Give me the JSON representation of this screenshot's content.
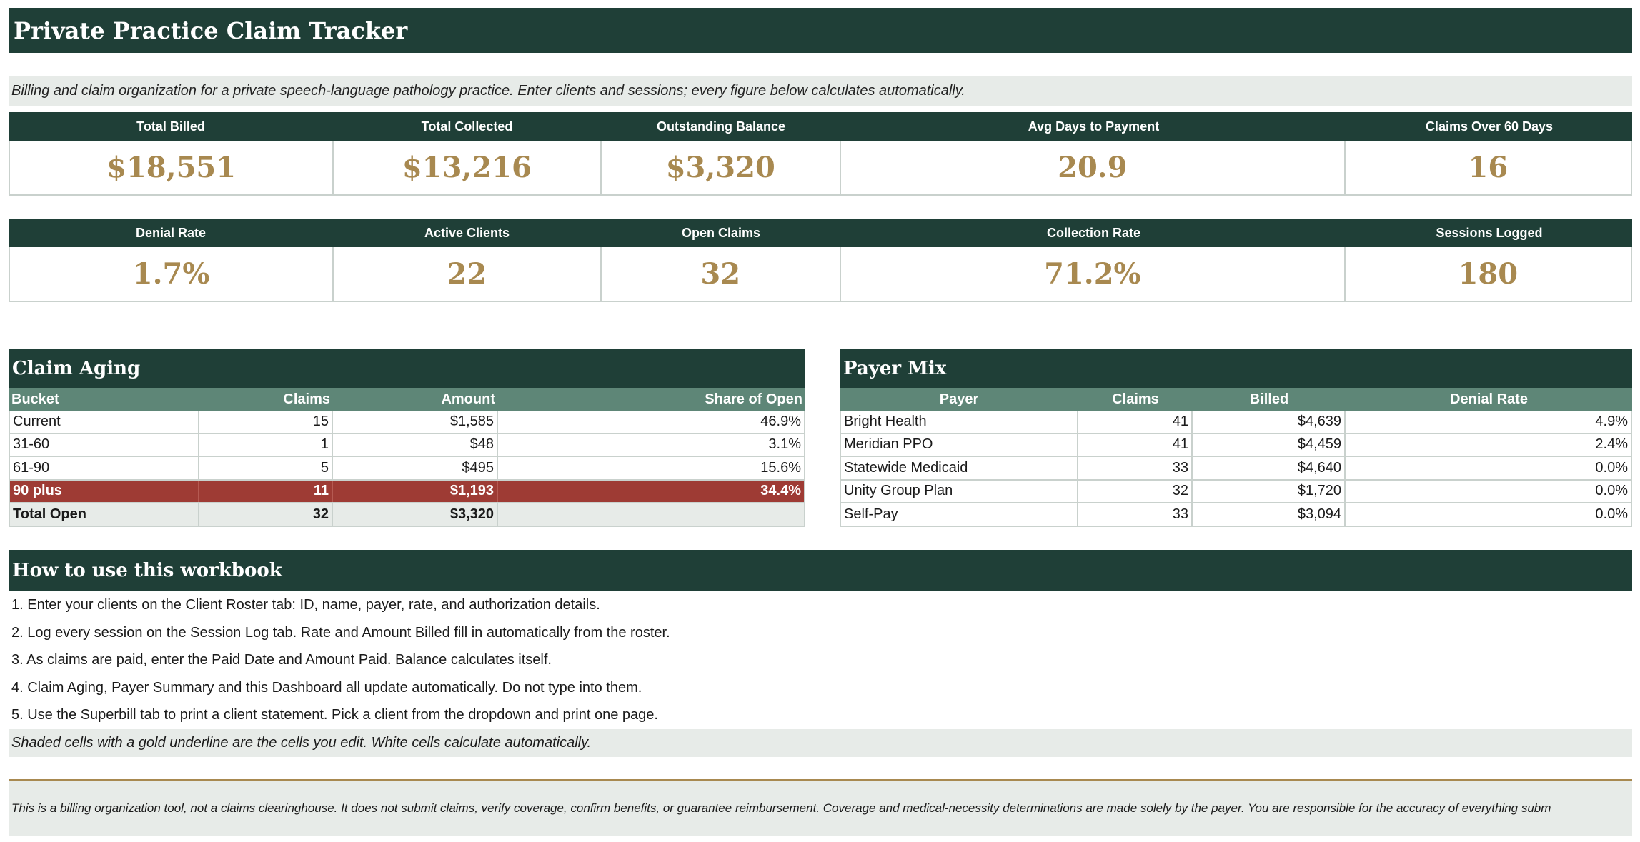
{
  "title": "Private Practice Claim Tracker",
  "subtitle": "Billing and claim organization for a private speech-language pathology practice. Enter clients and sessions; every figure below calculates automatically.",
  "kpi_row1": [
    {
      "label": "Total Billed",
      "value": "$18,551"
    },
    {
      "label": "Total Collected",
      "value": "$13,216"
    },
    {
      "label": "Outstanding Balance",
      "value": "$3,320"
    },
    {
      "label": "Avg Days to Payment",
      "value": "20.9"
    },
    {
      "label": "Claims Over 60 Days",
      "value": "16"
    }
  ],
  "kpi_row2": [
    {
      "label": "Denial Rate",
      "value": "1.7%"
    },
    {
      "label": "Active Clients",
      "value": "22"
    },
    {
      "label": "Open Claims",
      "value": "32"
    },
    {
      "label": "Collection Rate",
      "value": "71.2%"
    },
    {
      "label": "Sessions Logged",
      "value": "180"
    }
  ],
  "claim_aging": {
    "title": "Claim Aging",
    "headers": [
      "Bucket",
      "Claims",
      "Amount",
      "Share of Open"
    ],
    "rows": [
      [
        "Current",
        "15",
        "$1,585",
        "46.9%"
      ],
      [
        "31-60",
        "1",
        "$48",
        "3.1%"
      ],
      [
        "61-90",
        "5",
        "$495",
        "15.6%"
      ],
      [
        "90 plus",
        "11",
        "$1,193",
        "34.4%"
      ]
    ],
    "total": [
      "Total Open",
      "32",
      "$3,320",
      ""
    ],
    "alert_color": "#9e3b34"
  },
  "payer_mix": {
    "title": "Payer Mix",
    "headers": [
      "Payer",
      "Claims",
      "Billed",
      "Denial Rate"
    ],
    "rows": [
      [
        "Bright Health",
        "41",
        "$4,639",
        "4.9%"
      ],
      [
        "Meridian PPO",
        "41",
        "$4,459",
        "2.4%"
      ],
      [
        "Statewide Medicaid",
        "33",
        "$4,640",
        "0.0%"
      ],
      [
        "Unity Group Plan",
        "32",
        "$1,720",
        "0.0%"
      ],
      [
        "Self-Pay",
        "33",
        "$3,094",
        "0.0%"
      ]
    ]
  },
  "howto": {
    "title": "How to use this workbook",
    "steps": [
      "1. Enter your clients on the Client Roster tab: ID, name, payer, rate, and authorization details.",
      "2. Log every session on the Session Log tab. Rate and Amount Billed fill in automatically from the roster.",
      "3. As claims are paid, enter the Paid Date and Amount Paid. Balance calculates itself.",
      "4. Claim Aging, Payer Summary and this Dashboard all update automatically. Do not type into them.",
      "5. Use the Superbill tab to print a client statement. Pick a client from the dropdown and print one page."
    ],
    "note": "Shaded cells with a gold underline are the cells you edit. White cells calculate automatically."
  },
  "disclaimer": "This is a billing organization tool, not a claims clearinghouse. It does not submit claims, verify coverage, confirm benefits, or guarantee reimbursement. Coverage and medical-necessity determinations are made solely by the payer. You are responsible for the accuracy of everything subm",
  "colors": {
    "header_green": "#1f3f37",
    "table_header_green": "#5e8677",
    "gold": "#a88950",
    "shade": "#e7ebe8"
  }
}
